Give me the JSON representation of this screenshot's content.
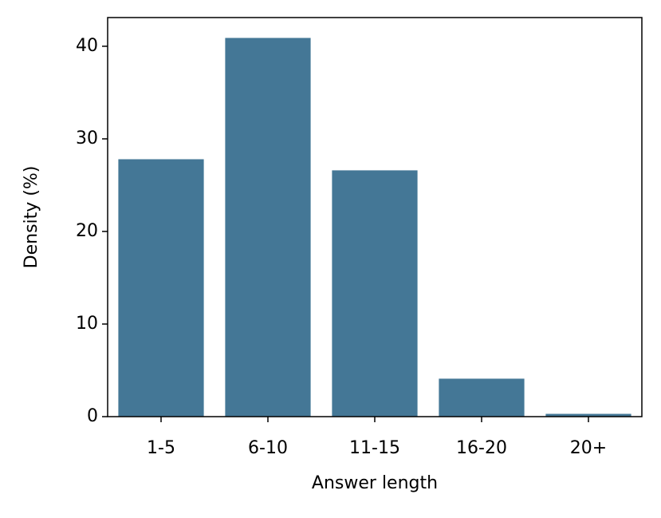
{
  "chart_data": {
    "type": "bar",
    "x_label": "Answer length",
    "y_label": "Density (%)",
    "categories": [
      "1-5",
      "6-10",
      "11-15",
      "16-20",
      "20+"
    ],
    "values": [
      27.8,
      40.9,
      26.6,
      4.1,
      0.3
    ],
    "color": "#447796",
    "ylim": [
      0,
      43.1
    ],
    "yticks": [
      0,
      10,
      20,
      30,
      40
    ]
  }
}
